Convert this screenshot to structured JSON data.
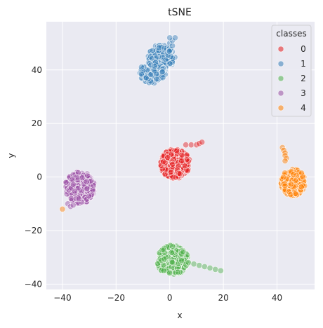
{
  "chart_data": {
    "type": "scatter",
    "title": "tSNE",
    "xlabel": "x",
    "ylabel": "y",
    "xlim": [
      -46,
      54
    ],
    "ylim": [
      -42,
      58
    ],
    "xticks": [
      -40,
      -20,
      0,
      20,
      40
    ],
    "yticks": [
      -40,
      -20,
      0,
      20,
      40
    ],
    "grid": true,
    "legend": {
      "title": "classes",
      "placement": "top-right"
    },
    "colors": {
      "background": "#eaeaf2",
      "grid": "#ffffff",
      "class_0": "#e41a1c",
      "class_1": "#377eb8",
      "class_2": "#4daf4a",
      "class_3": "#984ea3",
      "class_4": "#ff7f00"
    },
    "series": [
      {
        "name": "0",
        "color": "#e41a1c",
        "clusters": [
          {
            "cx": 2,
            "cy": 5,
            "rx": 5.5,
            "ry": 5.5,
            "n": 220
          }
        ],
        "tail": [
          [
            6,
            12
          ],
          [
            8,
            12
          ],
          [
            10,
            12
          ],
          [
            11,
            12.5
          ],
          [
            12,
            13
          ]
        ]
      },
      {
        "name": "1",
        "color": "#377eb8",
        "clusters": [
          {
            "cx": -3,
            "cy": 45,
            "rx": 5,
            "ry": 4.5,
            "n": 150
          },
          {
            "cx": -6.5,
            "cy": 39,
            "rx": 5,
            "ry": 4,
            "n": 120
          }
        ],
        "tail": [
          [
            0,
            50
          ],
          [
            1,
            51
          ],
          [
            2,
            52
          ],
          [
            0,
            52
          ],
          [
            1,
            49
          ]
        ]
      },
      {
        "name": "2",
        "color": "#4daf4a",
        "clusters": [
          {
            "cx": 1,
            "cy": -31,
            "rx": 6,
            "ry": 5.5,
            "n": 230
          }
        ],
        "tail": [
          [
            7,
            -32
          ],
          [
            9,
            -32.5
          ],
          [
            11,
            -33
          ],
          [
            13,
            -33.5
          ],
          [
            15,
            -34
          ],
          [
            17,
            -34.5
          ],
          [
            19,
            -35
          ],
          [
            5,
            -28
          ]
        ]
      },
      {
        "name": "3",
        "color": "#984ea3",
        "clusters": [
          {
            "cx": -33.5,
            "cy": -4,
            "rx": 5.5,
            "ry": 6,
            "n": 240
          }
        ],
        "tail": [
          [
            -38,
            -10
          ],
          [
            -37,
            -11
          ],
          [
            -36,
            -10.5
          ]
        ]
      },
      {
        "name": "4",
        "color": "#ff7f00",
        "clusters": [
          {
            "cx": 46,
            "cy": -2,
            "rx": 4.5,
            "ry": 5,
            "n": 200
          }
        ],
        "tail": [
          [
            42,
            11
          ],
          [
            42.5,
            10
          ],
          [
            43,
            9
          ],
          [
            43,
            8
          ],
          [
            43.5,
            7
          ],
          [
            43,
            6
          ],
          [
            -40,
            -12
          ]
        ]
      }
    ]
  }
}
